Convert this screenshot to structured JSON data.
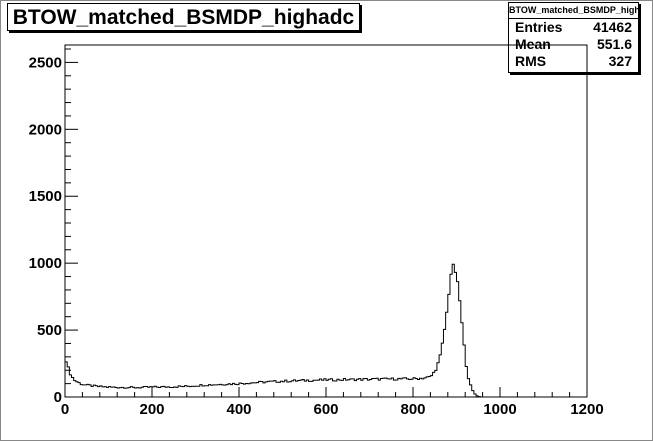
{
  "chart_data": {
    "type": "histogram",
    "title": "BTOW_matched_BSMDP_highadc",
    "stats": {
      "header": "BTOW_matched_BSMDP_highadc",
      "rows": [
        {
          "label": "Entries",
          "value": "41462"
        },
        {
          "label": "Mean",
          "value": "551.6"
        },
        {
          "label": "RMS",
          "value": "327"
        }
      ]
    },
    "xlim": [
      0,
      1200
    ],
    "ylim": [
      0,
      2630
    ],
    "x_ticks": [
      0,
      200,
      400,
      600,
      800,
      1000,
      1200
    ],
    "y_ticks": [
      0,
      500,
      1000,
      1500,
      2000,
      2500
    ],
    "grid": false,
    "bin_width": 5,
    "x": [
      0,
      5,
      10,
      15,
      20,
      25,
      30,
      35,
      40,
      45,
      50,
      60,
      70,
      80,
      90,
      100,
      120,
      140,
      160,
      180,
      200,
      220,
      240,
      260,
      280,
      300,
      320,
      340,
      360,
      380,
      400,
      420,
      440,
      460,
      480,
      500,
      520,
      540,
      560,
      580,
      600,
      620,
      640,
      660,
      680,
      700,
      720,
      740,
      760,
      780,
      800,
      820,
      840,
      850,
      855,
      860,
      865,
      870,
      875,
      880,
      885,
      890,
      895,
      900,
      905,
      910,
      915,
      920,
      925,
      930,
      935,
      940,
      945,
      950,
      955
    ],
    "values": [
      310,
      240,
      190,
      160,
      130,
      120,
      110,
      100,
      95,
      92,
      88,
      85,
      80,
      78,
      76,
      74,
      72,
      72,
      70,
      72,
      74,
      75,
      76,
      78,
      80,
      85,
      90,
      92,
      95,
      98,
      100,
      105,
      108,
      112,
      115,
      118,
      120,
      122,
      125,
      126,
      128,
      128,
      130,
      130,
      132,
      132,
      134,
      134,
      135,
      135,
      136,
      140,
      150,
      190,
      230,
      270,
      340,
      450,
      560,
      700,
      850,
      990,
      970,
      900,
      800,
      640,
      460,
      300,
      180,
      110,
      60,
      30,
      15,
      5,
      0
    ]
  }
}
